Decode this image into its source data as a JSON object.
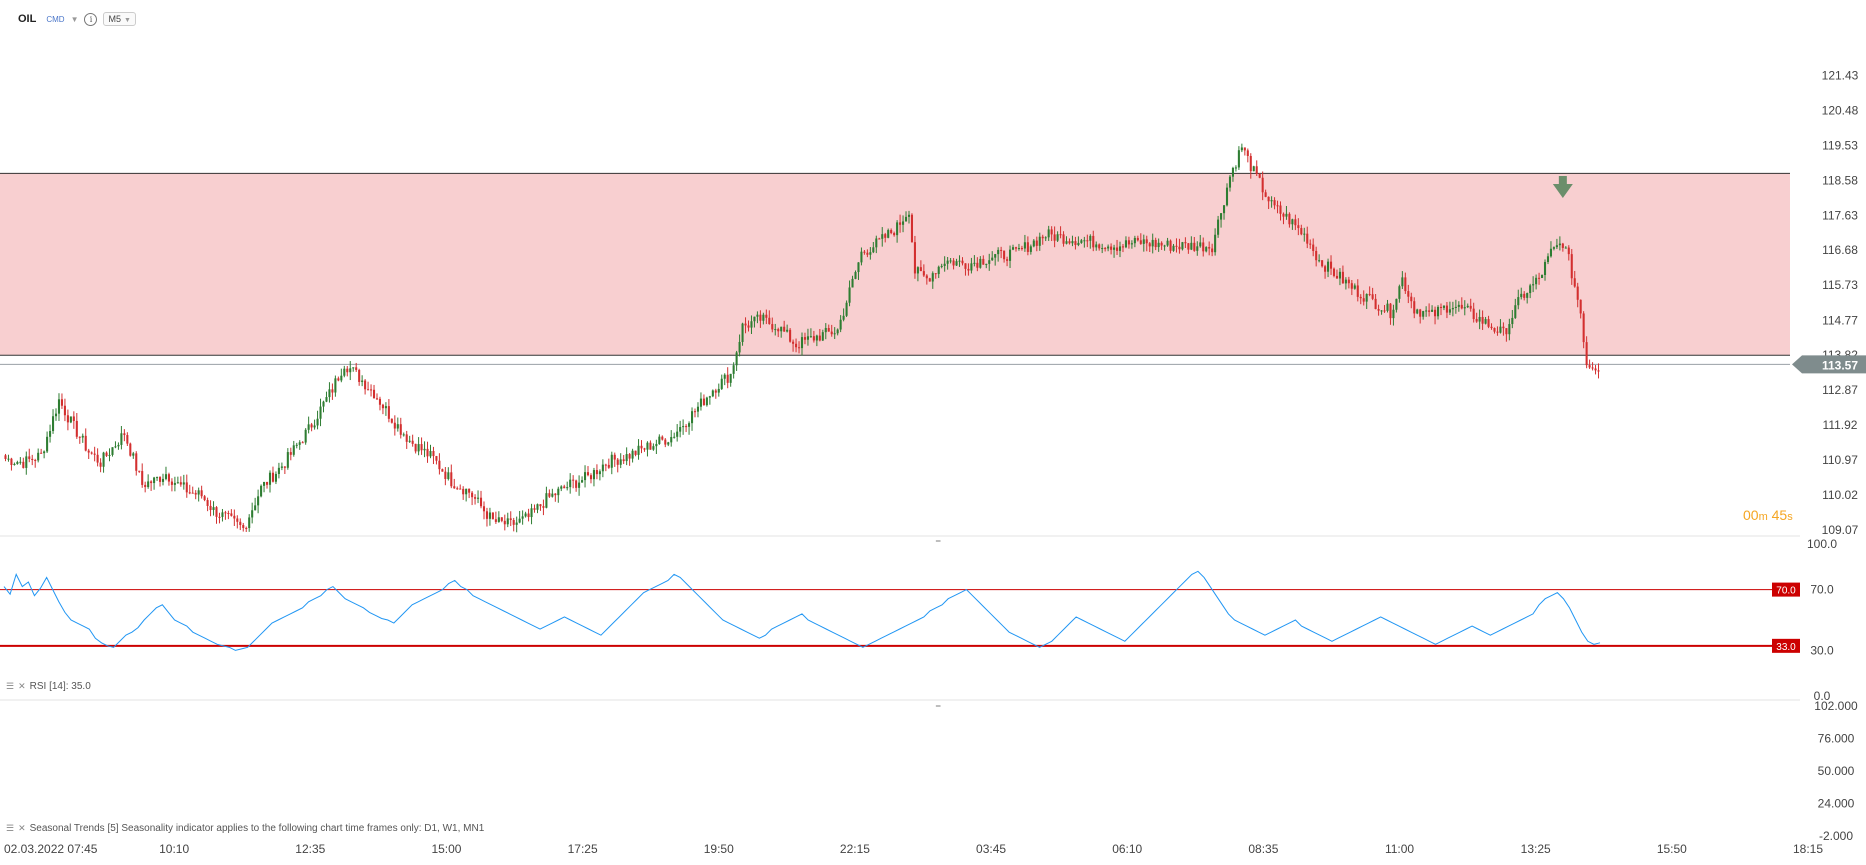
{
  "toolbar": {
    "symbol": "OIL",
    "market": "CMD",
    "timeframe": "M5"
  },
  "colors": {
    "up": "#2e7d32",
    "down": "#d32f2f",
    "zone_fill": "#f8cfd0",
    "rsi_line": "#2196f3",
    "rsi_level": "#cc0000",
    "price_tag": "#7f8c8d",
    "timer": "#f5a623",
    "arrow": "#6b8e6b"
  },
  "timer": {
    "minutes": "00",
    "seconds": "45",
    "m_unit": "m",
    "s_unit": "s"
  },
  "rsi_label": "RSI [14]: 35.0",
  "seasonal_label": "Seasonal Trends [5] Seasonality indicator applies to the following chart time frames only: D1, W1, MN1",
  "chart_data": [
    {
      "type": "candlestick",
      "symbol": "OIL",
      "price_ticks": [
        "121.43",
        "120.48",
        "119.53",
        "118.58",
        "117.63",
        "116.68",
        "115.73",
        "114.77",
        "113.82",
        "112.87",
        "111.92",
        "110.97",
        "110.02",
        "109.07"
      ],
      "price_tick_values": [
        121.43,
        120.48,
        119.53,
        118.58,
        117.63,
        116.68,
        115.73,
        114.77,
        113.82,
        112.87,
        111.92,
        110.97,
        110.02,
        109.07
      ],
      "ylim": [
        108.9,
        122.4
      ],
      "current_price": 113.57,
      "current_price_label": "113.57",
      "zone": {
        "low": 113.82,
        "high": 118.77
      },
      "time_labels": [
        "02.03.2022 07:45",
        "10:10",
        "12:35",
        "15:00",
        "17:25",
        "19:50",
        "22:15",
        "03:45",
        "06:10",
        "08:35",
        "11:00",
        "13:25",
        "15:50",
        "18:15"
      ],
      "anchors": [
        [
          0,
          111.0
        ],
        [
          6,
          110.9
        ],
        [
          12,
          111.1
        ],
        [
          18,
          112.6
        ],
        [
          22,
          112.0
        ],
        [
          28,
          111.2
        ],
        [
          32,
          110.9
        ],
        [
          40,
          111.7
        ],
        [
          46,
          110.3
        ],
        [
          50,
          110.4
        ],
        [
          54,
          110.6
        ],
        [
          58,
          110.3
        ],
        [
          62,
          110.1
        ],
        [
          66,
          110.0
        ],
        [
          70,
          109.6
        ],
        [
          76,
          109.3
        ],
        [
          80,
          109.1
        ],
        [
          86,
          110.2
        ],
        [
          94,
          110.9
        ],
        [
          102,
          111.8
        ],
        [
          110,
          112.9
        ],
        [
          114,
          113.6
        ],
        [
          118,
          113.3
        ],
        [
          124,
          112.8
        ],
        [
          130,
          112.1
        ],
        [
          136,
          111.5
        ],
        [
          144,
          111.0
        ],
        [
          150,
          110.4
        ],
        [
          156,
          110.1
        ],
        [
          164,
          109.3
        ],
        [
          170,
          109.2
        ],
        [
          176,
          109.4
        ],
        [
          182,
          109.9
        ],
        [
          190,
          110.3
        ],
        [
          196,
          110.5
        ],
        [
          202,
          110.9
        ],
        [
          210,
          111.1
        ],
        [
          218,
          111.4
        ],
        [
          224,
          111.6
        ],
        [
          232,
          112.3
        ],
        [
          238,
          112.9
        ],
        [
          244,
          113.3
        ],
        [
          248,
          114.6
        ],
        [
          254,
          114.8
        ],
        [
          260,
          114.6
        ],
        [
          266,
          114.1
        ],
        [
          272,
          114.3
        ],
        [
          276,
          114.4
        ],
        [
          280,
          114.5
        ],
        [
          288,
          116.6
        ],
        [
          294,
          116.9
        ],
        [
          300,
          117.3
        ],
        [
          304,
          117.8
        ],
        [
          306,
          116.1
        ],
        [
          310,
          115.9
        ],
        [
          316,
          116.4
        ],
        [
          324,
          116.3
        ],
        [
          332,
          116.5
        ],
        [
          340,
          116.6
        ],
        [
          350,
          117.1
        ],
        [
          358,
          117.0
        ],
        [
          366,
          116.9
        ],
        [
          374,
          116.8
        ],
        [
          382,
          116.9
        ],
        [
          392,
          116.8
        ],
        [
          406,
          116.8
        ],
        [
          412,
          118.7
        ],
        [
          416,
          119.5
        ],
        [
          420,
          118.8
        ],
        [
          426,
          117.9
        ],
        [
          432,
          117.5
        ],
        [
          438,
          117.0
        ],
        [
          442,
          116.4
        ],
        [
          448,
          116.0
        ],
        [
          454,
          115.6
        ],
        [
          460,
          115.3
        ],
        [
          466,
          115.0
        ],
        [
          470,
          115.9
        ],
        [
          474,
          115.1
        ],
        [
          480,
          114.9
        ],
        [
          486,
          115.2
        ],
        [
          492,
          115.0
        ],
        [
          498,
          114.7
        ],
        [
          504,
          114.4
        ],
        [
          510,
          115.4
        ],
        [
          516,
          115.9
        ],
        [
          520,
          116.6
        ],
        [
          524,
          116.9
        ],
        [
          526,
          116.4
        ],
        [
          530,
          115.0
        ],
        [
          532,
          113.6
        ],
        [
          536,
          113.5
        ]
      ],
      "arrow_at": 524
    },
    {
      "type": "line",
      "name": "RSI [14]",
      "ylim": [
        0,
        100
      ],
      "y_ticks": [
        "100.0",
        "70.0",
        "30.0",
        "0.0"
      ],
      "y_tick_values": [
        100,
        70,
        30,
        0
      ],
      "levels": [
        70.0,
        33.0
      ],
      "level_labels": [
        "70.0",
        "33.0"
      ],
      "last_value": 35.0,
      "values": [
        72,
        67,
        80,
        72,
        75,
        66,
        71,
        78,
        70,
        62,
        55,
        50,
        48,
        46,
        44,
        38,
        35,
        33,
        32,
        36,
        40,
        42,
        45,
        50,
        54,
        58,
        60,
        55,
        50,
        48,
        46,
        42,
        40,
        38,
        36,
        34,
        33,
        32,
        30,
        31,
        32,
        36,
        40,
        44,
        48,
        50,
        52,
        54,
        56,
        58,
        62,
        64,
        66,
        70,
        72,
        68,
        64,
        62,
        60,
        58,
        55,
        53,
        51,
        50,
        48,
        52,
        56,
        60,
        62,
        64,
        66,
        68,
        70,
        74,
        76,
        72,
        70,
        66,
        64,
        62,
        60,
        58,
        56,
        54,
        52,
        50,
        48,
        46,
        44,
        46,
        48,
        50,
        52,
        50,
        48,
        46,
        44,
        42,
        40,
        44,
        48,
        52,
        56,
        60,
        64,
        68,
        70,
        72,
        74,
        76,
        80,
        78,
        74,
        70,
        66,
        62,
        58,
        54,
        50,
        48,
        46,
        44,
        42,
        40,
        38,
        40,
        44,
        46,
        48,
        50,
        52,
        54,
        50,
        48,
        46,
        44,
        42,
        40,
        38,
        36,
        34,
        32,
        34,
        36,
        38,
        40,
        42,
        44,
        46,
        48,
        50,
        52,
        56,
        58,
        60,
        64,
        66,
        68,
        70,
        66,
        62,
        58,
        54,
        50,
        46,
        42,
        40,
        38,
        36,
        34,
        32,
        34,
        36,
        40,
        44,
        48,
        52,
        50,
        48,
        46,
        44,
        42,
        40,
        38,
        36,
        40,
        44,
        48,
        52,
        56,
        60,
        64,
        68,
        72,
        76,
        80,
        82,
        78,
        72,
        66,
        60,
        54,
        50,
        48,
        46,
        44,
        42,
        40,
        42,
        44,
        46,
        48,
        50,
        46,
        44,
        42,
        40,
        38,
        36,
        38,
        40,
        42,
        44,
        46,
        48,
        50,
        52,
        50,
        48,
        46,
        44,
        42,
        40,
        38,
        36,
        34,
        36,
        38,
        40,
        42,
        44,
        46,
        44,
        42,
        40,
        42,
        44,
        46,
        48,
        50,
        52,
        54,
        60,
        64,
        66,
        68,
        64,
        58,
        50,
        42,
        36,
        34,
        35
      ]
    },
    {
      "type": "line",
      "name": "Seasonal Trends [5]",
      "y_ticks": [
        "102.000",
        "76.000",
        "50.000",
        "24.000",
        "-2.000"
      ],
      "y_tick_values": [
        102,
        76,
        50,
        24,
        -2
      ],
      "values": []
    }
  ]
}
